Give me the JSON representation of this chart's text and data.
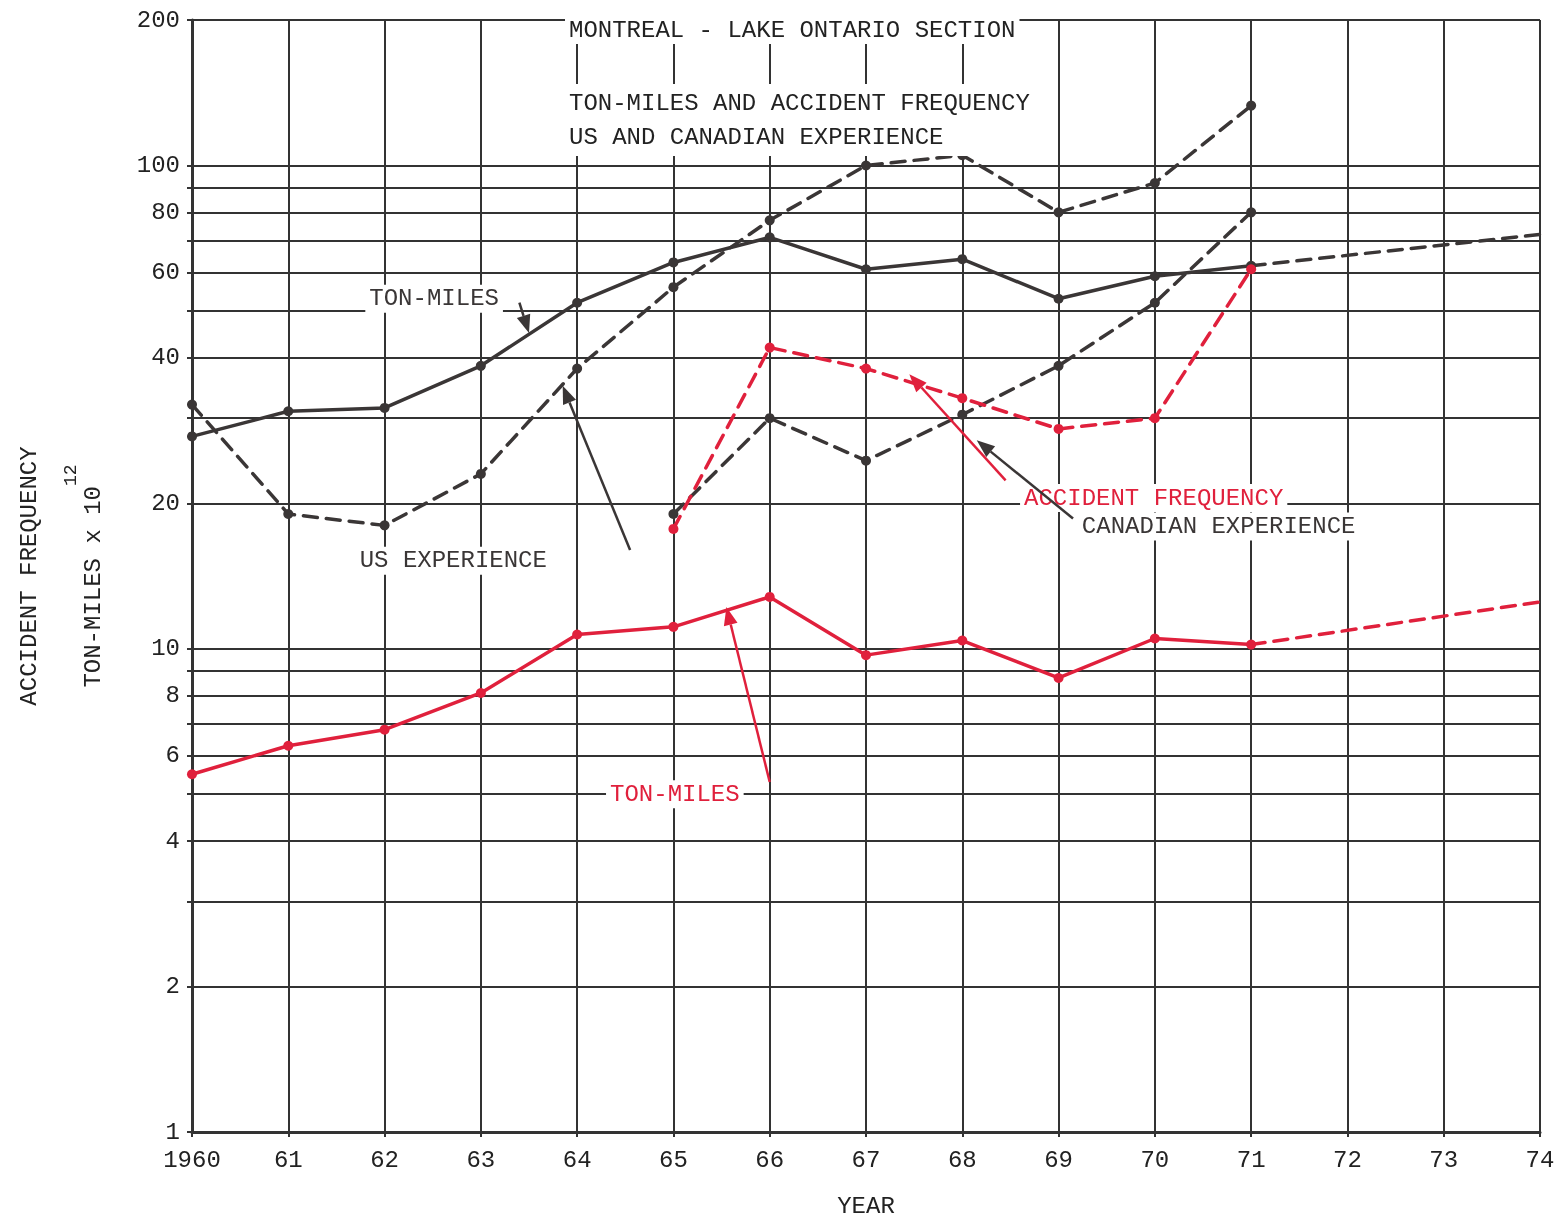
{
  "chart_data": {
    "type": "line",
    "title": "MONTREAL - LAKE ONTARIO SECTION",
    "subtitle": "TON-MILES AND ACCIDENT FREQUENCY\nUS AND CANADIAN EXPERIENCE",
    "xlabel": "YEAR",
    "ylabel": "ACCIDENT FREQUENCY\nTON-MILES x 10$^{12}$",
    "log": "y",
    "grid": true,
    "marker": "circle",
    "xlim": [
      1960,
      1974
    ],
    "xticks": [
      1960,
      {
        "value": 1961,
        "label": "61"
      },
      {
        "value": 1962,
        "label": "62"
      },
      {
        "value": 1963,
        "label": "63"
      },
      {
        "value": 1964,
        "label": "64"
      },
      {
        "value": 1965,
        "label": "65"
      },
      {
        "value": 1966,
        "label": "66"
      },
      {
        "value": 1967,
        "label": "67"
      },
      {
        "value": 1968,
        "label": "68"
      },
      {
        "value": 1969,
        "label": "69"
      },
      {
        "value": 1970,
        "label": "70"
      },
      {
        "value": 1971,
        "label": "71"
      },
      {
        "value": 1972,
        "label": "72"
      },
      {
        "value": 1973,
        "label": "73"
      },
      {
        "value": 1974,
        "label": "74"
      }
    ],
    "ylim": [
      1,
      200
    ],
    "yticks": [
      1,
      2,
      {
        "value": 3,
        "label": null
      },
      4,
      {
        "value": 5,
        "label": null
      },
      6,
      {
        "value": 7,
        "label": null
      },
      8,
      {
        "value": 9,
        "label": null
      },
      10,
      20,
      {
        "value": 30,
        "label": null
      },
      40,
      {
        "value": 50,
        "label": null
      },
      60,
      {
        "value": 70,
        "label": null
      },
      80,
      {
        "value": 90,
        "label": null
      },
      100,
      200
    ],
    "series": [
      {
        "name": "TON-MILES",
        "color": "#3a3636",
        "line_style": "solid",
        "x": [
          1960,
          1961,
          1962,
          1963,
          1964,
          1965,
          1966,
          1967,
          1968,
          1969,
          1970,
          1971
        ],
        "values": [
          27.5,
          31,
          31.5,
          38.5,
          52,
          63,
          71,
          61,
          64,
          53,
          59,
          62
        ]
      },
      {
        "color": "#3a3636",
        "line_style": "dashed",
        "marker": "none",
        "x": [
          1971,
          1974
        ],
        "values": [
          62,
          72
        ]
      },
      {
        "name": "US EXPERIENCE",
        "color": "#3a3636",
        "line_style": "dashed",
        "x": [
          1960,
          1961,
          1962,
          1963,
          1964,
          1965,
          1966,
          1967,
          1968,
          1969,
          1970,
          1971
        ],
        "values": [
          32,
          19,
          18,
          23,
          38,
          56,
          77,
          100,
          105,
          80,
          92,
          133
        ]
      },
      {
        "name": "CANADIAN EXPERIENCE",
        "color": "#3a3636",
        "line_style": "dashed",
        "x": [
          1965,
          1966,
          1967,
          1968,
          1969,
          1970,
          1971
        ],
        "values": [
          19,
          30,
          24.5,
          30.5,
          38.5,
          52,
          80
        ]
      },
      {
        "name": "ACCIDENT FREQUENCY",
        "color": "#e0203c",
        "line_style": "dashed",
        "x": [
          1965,
          1966,
          1967,
          1968,
          1969,
          1970,
          1971
        ],
        "values": [
          17.7,
          42,
          38,
          33,
          28.5,
          30,
          61
        ]
      },
      {
        "name": "TON-MILES",
        "color": "#e0203c",
        "line_style": "solid",
        "x": [
          1960,
          1961,
          1962,
          1963,
          1964,
          1965,
          1966,
          1967,
          1968,
          1969,
          1970,
          1971
        ],
        "values": [
          5.5,
          6.3,
          6.8,
          8.1,
          10.7,
          11.1,
          12.8,
          9.7,
          10.4,
          8.7,
          10.5,
          10.2
        ]
      },
      {
        "color": "#e0203c",
        "line_style": "dashed",
        "marker": "none",
        "x": [
          1971,
          1974
        ],
        "values": [
          10.2,
          12.5
        ]
      }
    ]
  }
}
